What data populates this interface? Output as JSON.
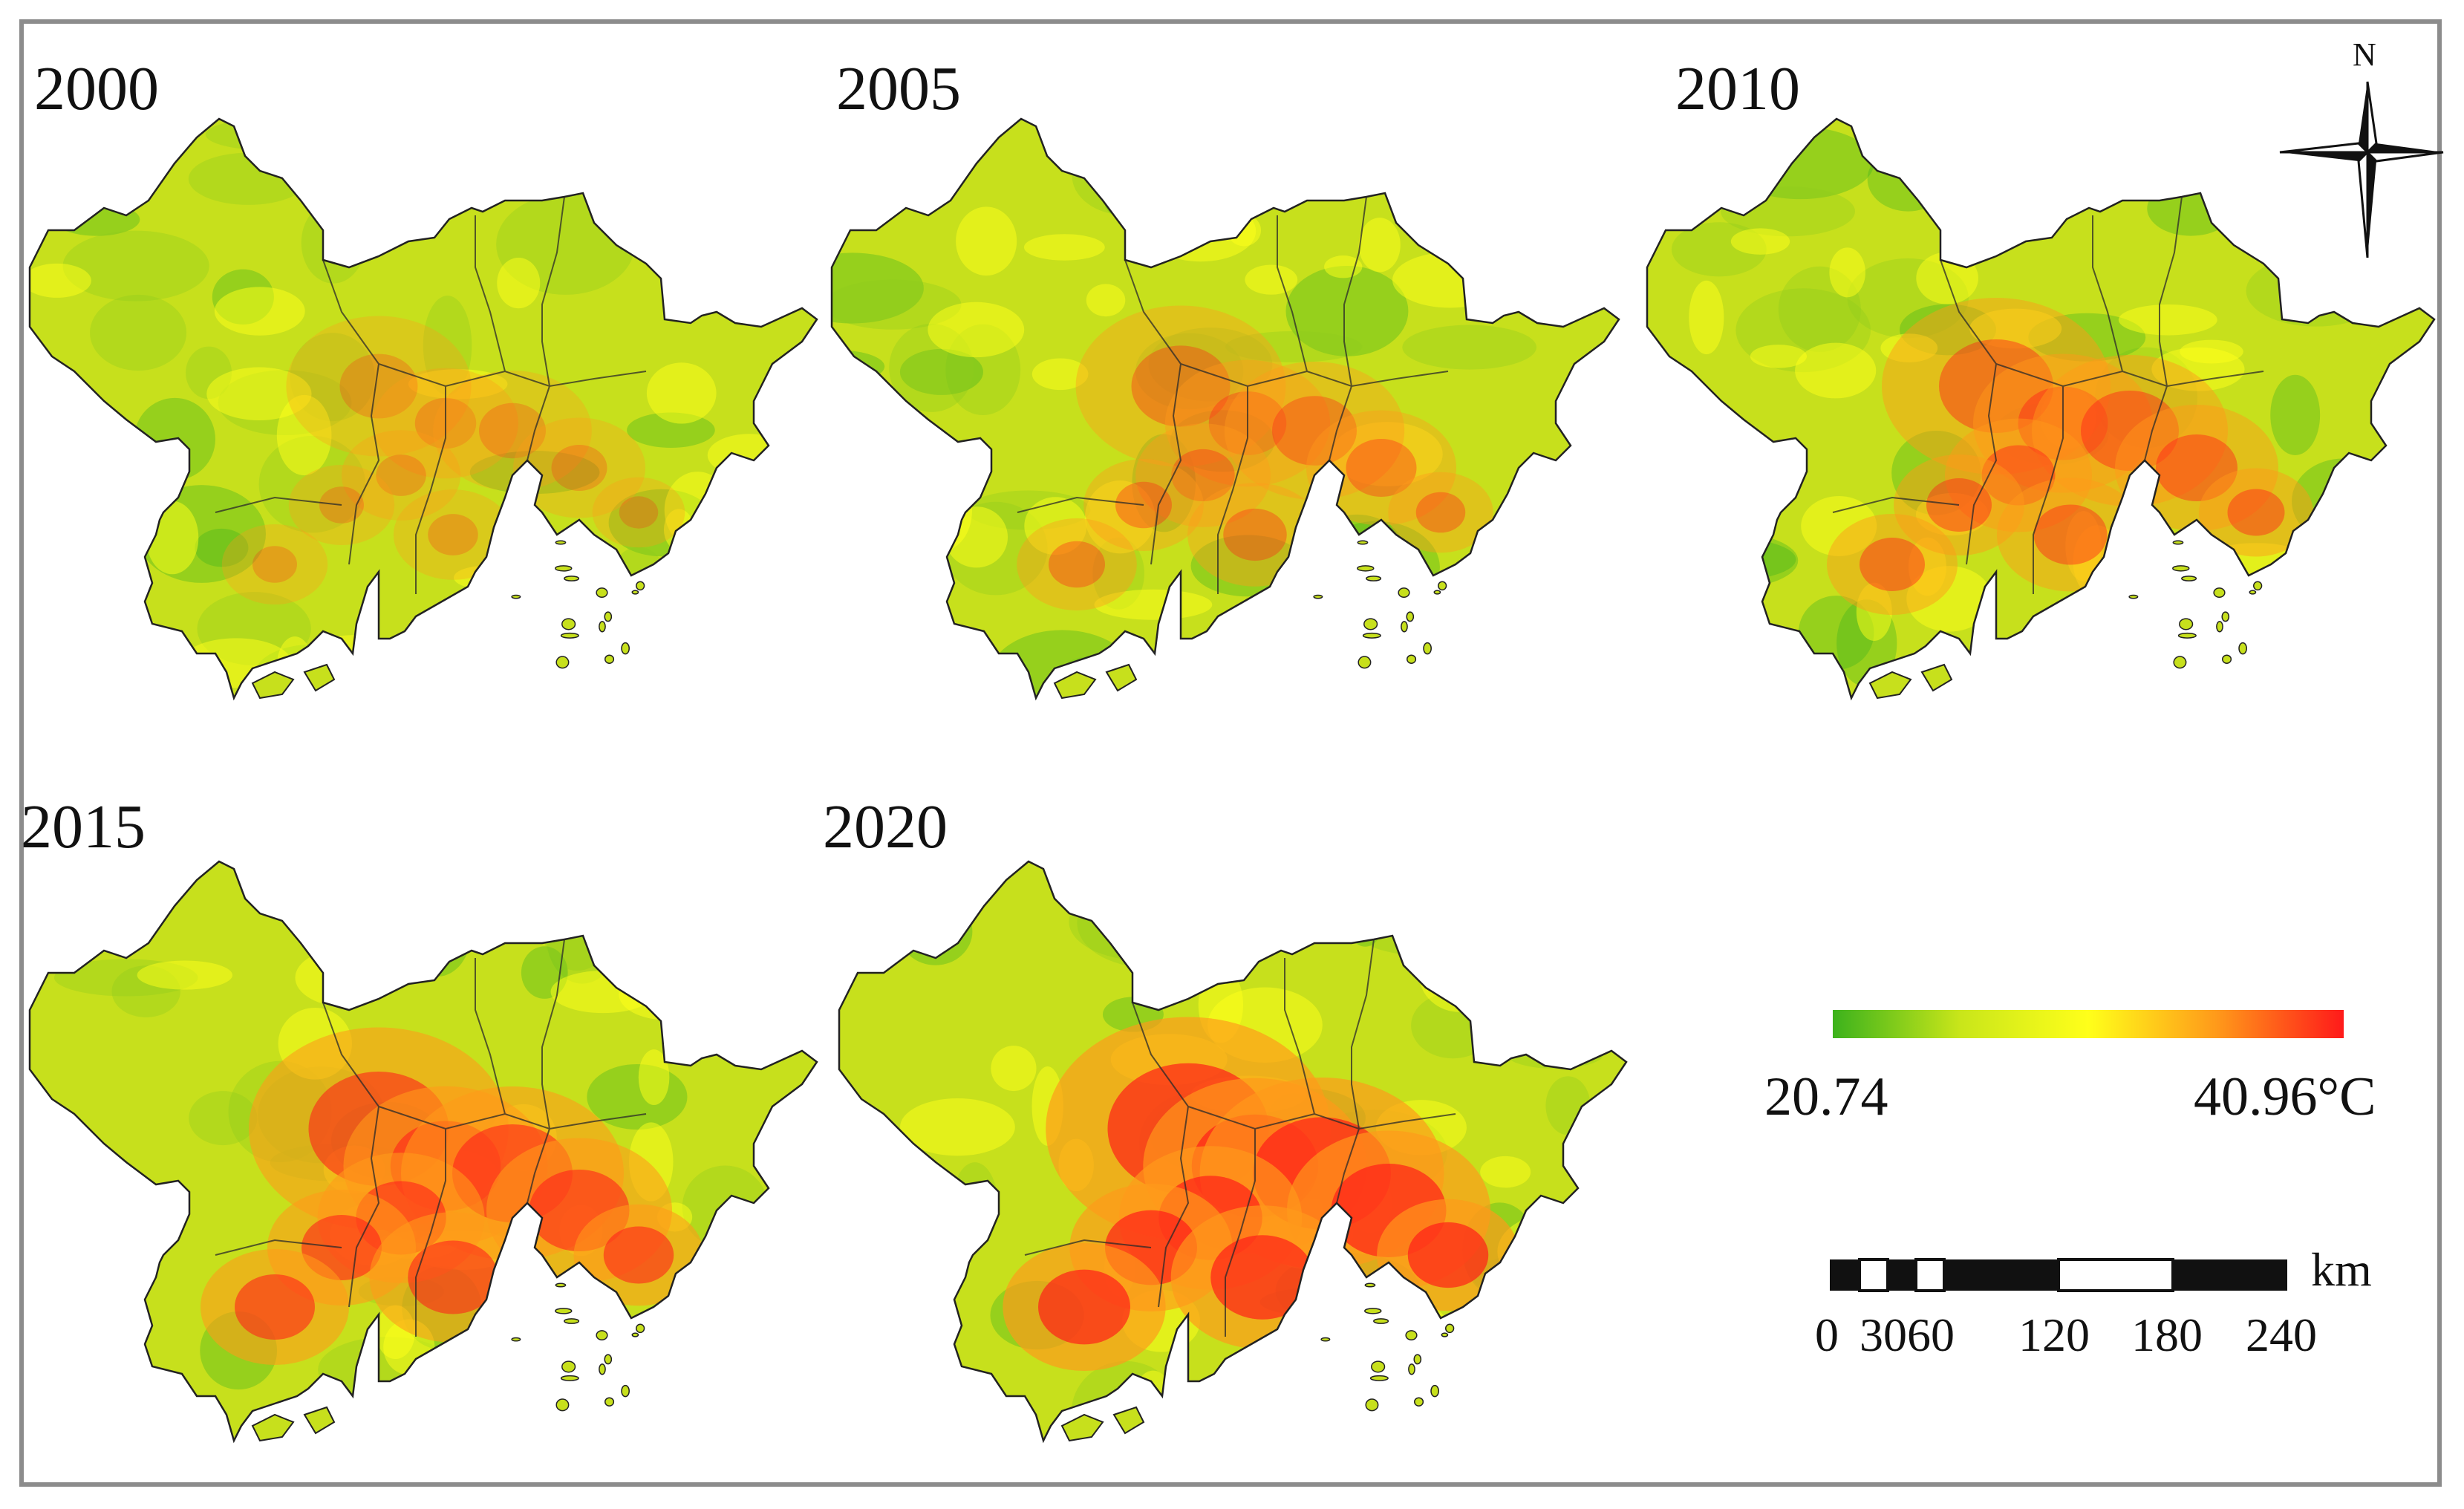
{
  "panels": [
    {
      "year": "2000",
      "heat": 0.15
    },
    {
      "year": "2005",
      "heat": 0.35
    },
    {
      "year": "2010",
      "heat": 0.5
    },
    {
      "year": "2015",
      "heat": 0.75
    },
    {
      "year": "2020",
      "heat": 0.95
    }
  ],
  "legend": {
    "min": "20.74",
    "max": "40.96°C",
    "colors": [
      "#3cb21c",
      "#c9e61a",
      "#ffff1a",
      "#ff9a1a",
      "#ff1a1a"
    ]
  },
  "scale_bar": {
    "unit": "km",
    "ticks": [
      "0",
      "3060",
      "120",
      "180",
      "240"
    ]
  },
  "north_arrow": {
    "letter": "N",
    "icon": "north-arrow-icon"
  }
}
